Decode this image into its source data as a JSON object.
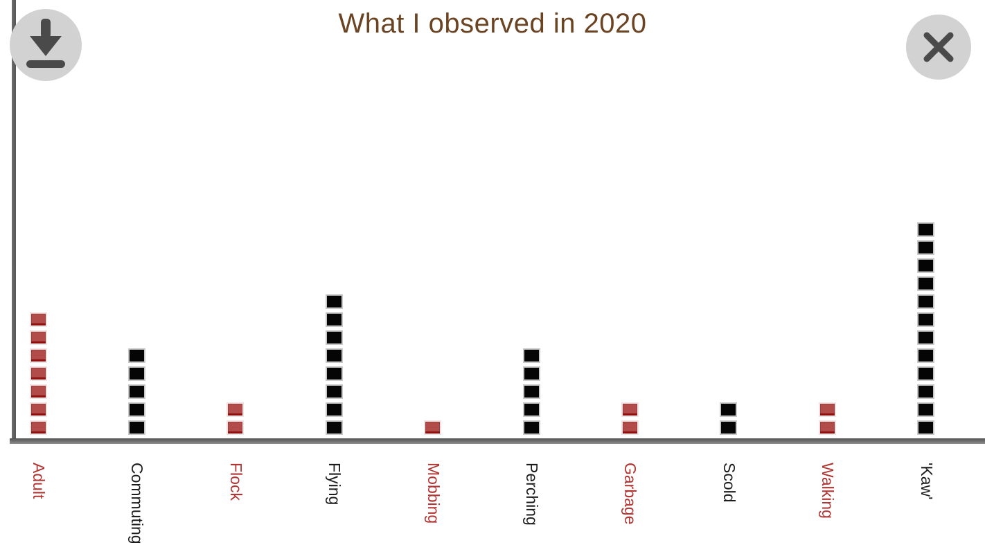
{
  "header": {
    "download_label": "Download chart",
    "close_label": "Close"
  },
  "chart_data": {
    "type": "bar",
    "subtype": "unit-square-stack",
    "title": "What I observed in 2020",
    "categories": [
      "Adult",
      "Commuting",
      "Flock",
      "Flying",
      "Mobbing",
      "Perching",
      "Garbage",
      "Scold",
      "Walking",
      "'Kaw'"
    ],
    "values": [
      7,
      5,
      2,
      8,
      1,
      5,
      2,
      2,
      2,
      12
    ],
    "unit_value": 1,
    "color_keys": [
      "red",
      "black",
      "red",
      "black",
      "red",
      "black",
      "red",
      "black",
      "red",
      "black"
    ],
    "unit_colors": {
      "red": "#b24c4a",
      "red_edge_dark": "#8c1210",
      "red_outline": "#f1e3e3",
      "black": "#050505",
      "black_outline": "#c9c9c9"
    },
    "label_colors": [
      "#b03532",
      "#1c1c1c",
      "#b03532",
      "#1c1c1c",
      "#b03532",
      "#1c1c1c",
      "#b03532",
      "#1c1c1c",
      "#b03532",
      "#1c1c1c"
    ],
    "xlabel": "",
    "ylabel": "",
    "ylim": [
      0,
      12
    ],
    "grid": false,
    "legend": null,
    "x_tick_rotation": 90
  },
  "theme": {
    "background": "#ffffff",
    "title_color": "#6b4423",
    "axis_color": "#6a6a6a",
    "button_bg": "#d2d2d2",
    "button_icon": "#4a4a4a"
  }
}
